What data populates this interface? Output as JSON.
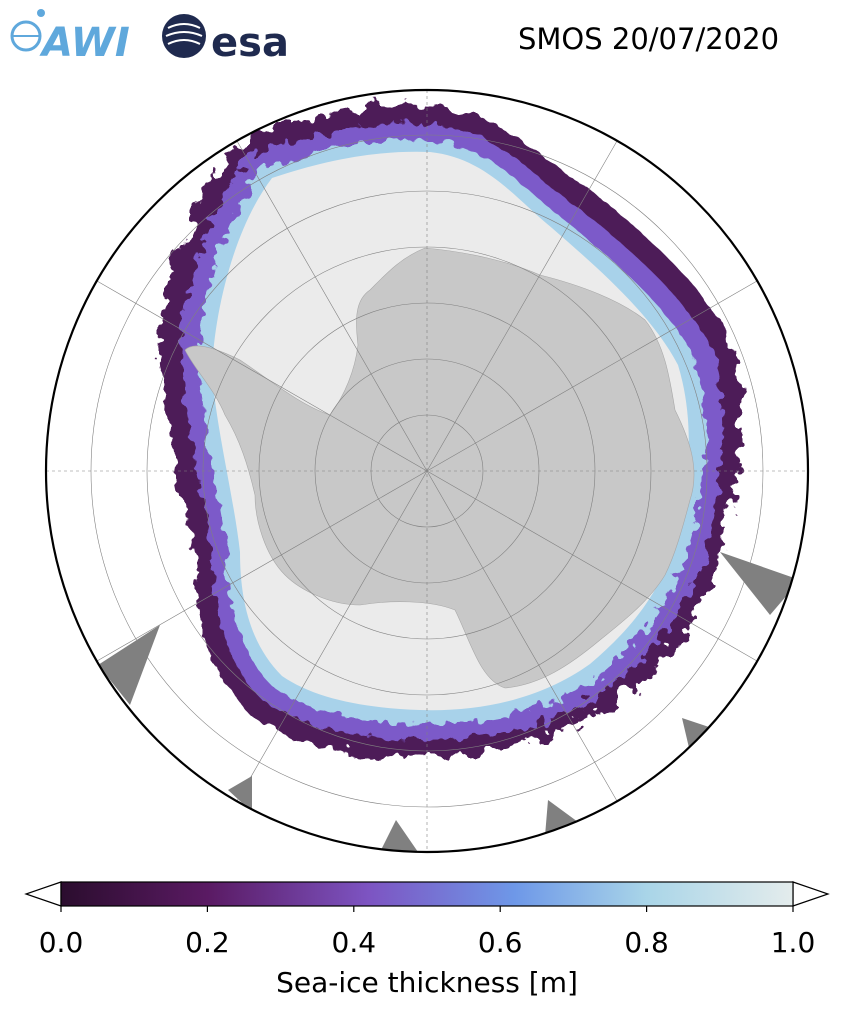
{
  "header": {
    "awi_logo": "AWI",
    "esa_logo": "esa",
    "title": "SMOS 20/07/2020"
  },
  "map": {
    "projection": "south-polar-stereographic",
    "land_color": "#c8c8c8",
    "thick_ice_color": "#ebebeb",
    "missing_data_color": "#808080",
    "gridlines": true
  },
  "colorbar": {
    "label": "Sea-ice thickness [m]",
    "ticks": [
      "0.0",
      "0.2",
      "0.4",
      "0.6",
      "0.8",
      "1.0"
    ],
    "range": [
      0.0,
      1.0
    ],
    "extend": "both",
    "colors": [
      "#2b0d2e",
      "#5a1a63",
      "#7d54c2",
      "#6e98e8",
      "#a9d5e8",
      "#e4ecec"
    ]
  }
}
